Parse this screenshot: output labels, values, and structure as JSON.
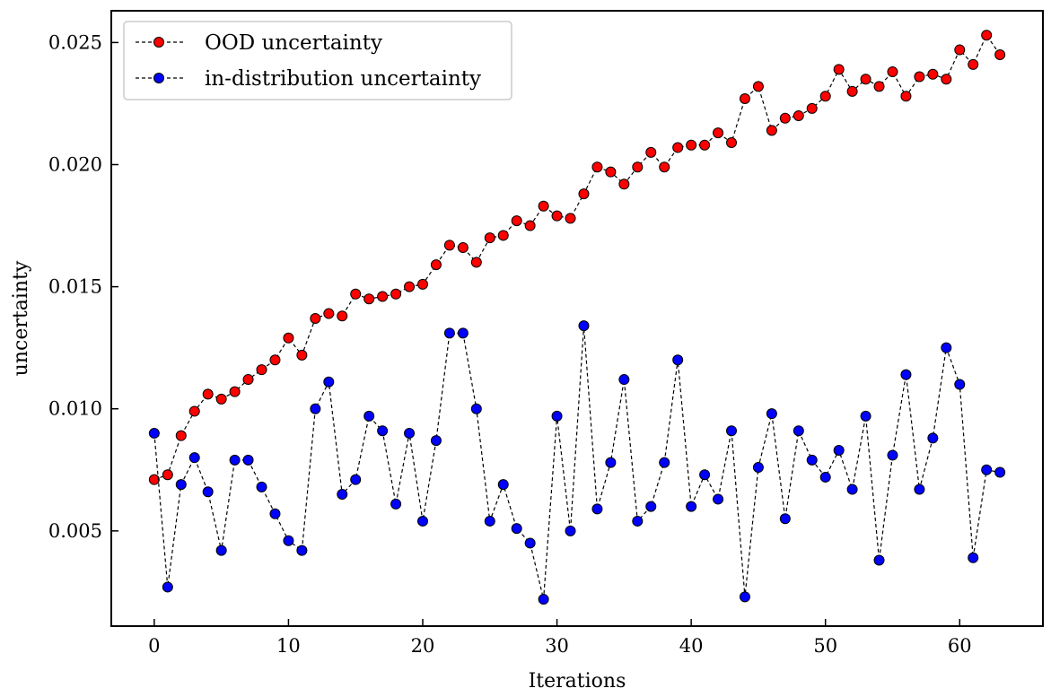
{
  "chart_data": {
    "type": "line",
    "xlabel": "Iterations",
    "ylabel": "uncertainty",
    "xlim": [
      -3.2,
      66.2
    ],
    "ylim": [
      0.0011,
      0.0263
    ],
    "xticks": [
      0,
      10,
      20,
      30,
      40,
      50,
      60
    ],
    "yticks": [
      0.005,
      0.01,
      0.015,
      0.02,
      0.025
    ],
    "xtick_labels": [
      "0",
      "10",
      "20",
      "30",
      "40",
      "50",
      "60"
    ],
    "ytick_labels": [
      "0.005",
      "0.010",
      "0.015",
      "0.020",
      "0.025"
    ],
    "grid": false,
    "legend_position": "top-left",
    "x": [
      0,
      1,
      2,
      3,
      4,
      5,
      6,
      7,
      8,
      9,
      10,
      11,
      12,
      13,
      14,
      15,
      16,
      17,
      18,
      19,
      20,
      21,
      22,
      23,
      24,
      25,
      26,
      27,
      28,
      29,
      30,
      31,
      32,
      33,
      34,
      35,
      36,
      37,
      38,
      39,
      40,
      41,
      42,
      43,
      44,
      45,
      46,
      47,
      48,
      49,
      50,
      51,
      52,
      53,
      54,
      55,
      56,
      57,
      58,
      59,
      60,
      61,
      62,
      63
    ],
    "series": [
      {
        "name": "OOD uncertainty",
        "color": "#ff0000",
        "line_style": "dashed",
        "line_color": "#000000",
        "marker": "circle",
        "values": [
          0.0071,
          0.0073,
          0.0089,
          0.0099,
          0.0106,
          0.0104,
          0.0107,
          0.0112,
          0.0116,
          0.012,
          0.0129,
          0.0122,
          0.0137,
          0.0139,
          0.0138,
          0.0147,
          0.0145,
          0.0146,
          0.0147,
          0.015,
          0.0151,
          0.0159,
          0.0167,
          0.0166,
          0.016,
          0.017,
          0.0171,
          0.0177,
          0.0175,
          0.0183,
          0.0179,
          0.0178,
          0.0188,
          0.0199,
          0.0197,
          0.0192,
          0.0199,
          0.0205,
          0.0199,
          0.0207,
          0.0208,
          0.0208,
          0.0213,
          0.0209,
          0.0227,
          0.0232,
          0.0214,
          0.0219,
          0.022,
          0.0223,
          0.0228,
          0.0239,
          0.023,
          0.0235,
          0.0232,
          0.0238,
          0.0228,
          0.0236,
          0.0237,
          0.0235,
          0.0247,
          0.0241,
          0.0253,
          0.0245
        ]
      },
      {
        "name": "in-distribution uncertainty",
        "color": "#0000ff",
        "line_style": "dashed",
        "line_color": "#000000",
        "marker": "circle",
        "values": [
          0.009,
          0.0027,
          0.0069,
          0.008,
          0.0066,
          0.0042,
          0.0079,
          0.0079,
          0.0068,
          0.0057,
          0.0046,
          0.0042,
          0.01,
          0.0111,
          0.0065,
          0.0071,
          0.0097,
          0.0091,
          0.0061,
          0.009,
          0.0054,
          0.0087,
          0.0131,
          0.0131,
          0.01,
          0.0054,
          0.0069,
          0.0051,
          0.0045,
          0.0022,
          0.0097,
          0.005,
          0.0134,
          0.0059,
          0.0078,
          0.0112,
          0.0054,
          0.006,
          0.0078,
          0.012,
          0.006,
          0.0073,
          0.0063,
          0.0091,
          0.0023,
          0.0076,
          0.0098,
          0.0055,
          0.0091,
          0.0079,
          0.0072,
          0.0083,
          0.0067,
          0.0097,
          0.0038,
          0.0081,
          0.0114,
          0.0067,
          0.0088,
          0.0125,
          0.011,
          0.0039,
          0.0075,
          0.0074
        ]
      }
    ]
  }
}
